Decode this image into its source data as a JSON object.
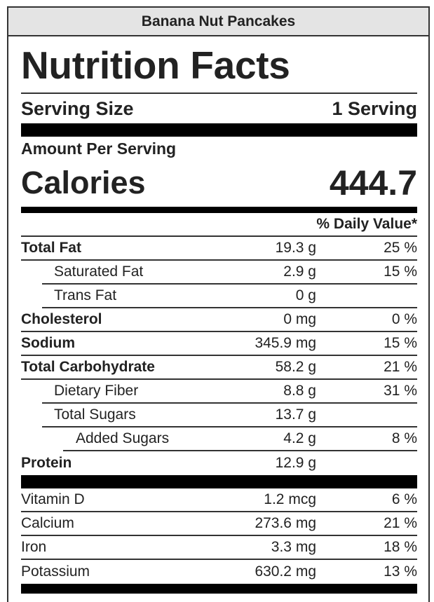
{
  "recipe_title": "Banana Nut Pancakes",
  "heading": "Nutrition Facts",
  "serving": {
    "label": "Serving Size",
    "value": "1 Serving"
  },
  "amount_per_serving": "Amount Per Serving",
  "calories": {
    "label": "Calories",
    "value": "444.7"
  },
  "daily_value_header": "% Daily Value*",
  "nutrients": [
    {
      "name": "Total Fat",
      "amount": "19.3 g",
      "dv": "25 %"
    },
    {
      "name": "Saturated Fat",
      "amount": "2.9 g",
      "dv": "15 %"
    },
    {
      "name": "Trans Fat",
      "amount": "0 g",
      "dv": ""
    },
    {
      "name": "Cholesterol",
      "amount": "0 mg",
      "dv": "0 %"
    },
    {
      "name": "Sodium",
      "amount": "345.9 mg",
      "dv": "15 %"
    },
    {
      "name": "Total Carbohydrate",
      "amount": "58.2 g",
      "dv": "21 %"
    },
    {
      "name": "Dietary Fiber",
      "amount": "8.8 g",
      "dv": "31 %"
    },
    {
      "name": "Total Sugars",
      "amount": "13.7 g",
      "dv": ""
    },
    {
      "name": "Added Sugars",
      "amount": "4.2 g",
      "dv": "8 %"
    },
    {
      "name": "Protein",
      "amount": "12.9 g",
      "dv": ""
    }
  ],
  "vitamins": [
    {
      "name": "Vitamin D",
      "amount": "1.2 mcg",
      "dv": "6 %"
    },
    {
      "name": "Calcium",
      "amount": "273.6 mg",
      "dv": "21 %"
    },
    {
      "name": "Iron",
      "amount": "3.3 mg",
      "dv": "18 %"
    },
    {
      "name": "Potassium",
      "amount": "630.2 mg",
      "dv": "13 %"
    }
  ]
}
